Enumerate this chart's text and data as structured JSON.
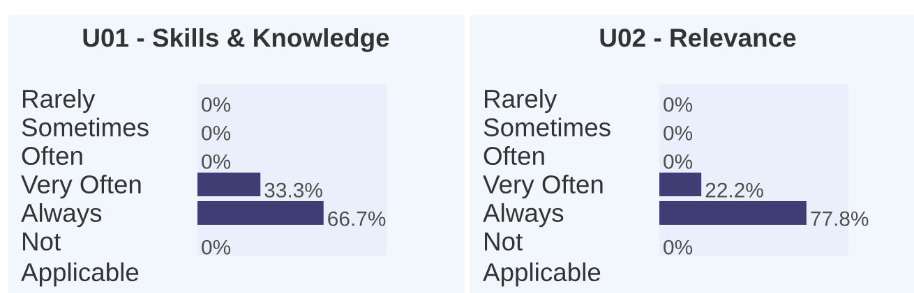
{
  "chart_data": [
    {
      "type": "bar",
      "orientation": "horizontal",
      "title": "U01 - Skills & Knowledge",
      "categories": [
        "Rarely",
        "Sometimes",
        "Often",
        "Very Often",
        "Always",
        "Not\nApplicable"
      ],
      "values": [
        0,
        0,
        0,
        33.3,
        66.7,
        0
      ],
      "value_labels": [
        "0%",
        "0%",
        "0%",
        "33.3%",
        "66.7%",
        "0%"
      ],
      "color": "#403d74",
      "xlim": [
        0,
        100
      ],
      "tick_labels": "y"
    },
    {
      "type": "bar",
      "orientation": "horizontal",
      "title": "U02 - Relevance",
      "categories": [
        "Rarely",
        "Sometimes",
        "Often",
        "Very Often",
        "Always",
        "Not\nApplicable"
      ],
      "values": [
        0,
        0,
        0,
        22.2,
        77.8,
        0
      ],
      "value_labels": [
        "0%",
        "0%",
        "0%",
        "22.2%",
        "77.8%",
        "0%"
      ],
      "color": "#403d74",
      "xlim": [
        0,
        100
      ],
      "tick_labels": "y"
    }
  ]
}
